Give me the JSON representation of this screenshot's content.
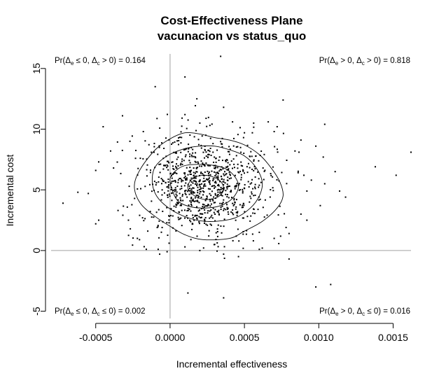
{
  "chart_data": {
    "type": "scatter",
    "title": "Cost-Effectiveness Plane",
    "subtitle": "vacunacion vs status_quo",
    "xlabel": "Incremental effectiveness",
    "ylabel": "Incremental cost",
    "xlim": [
      -0.0008,
      0.00162
    ],
    "ylim": [
      -5.6,
      16.2
    ],
    "x_ticks": [
      -0.0005,
      0.0,
      0.0005,
      0.001,
      0.0015
    ],
    "x_tick_labels": [
      "-0.0005",
      "0.0000",
      "0.0005",
      "0.0010",
      "0.0015"
    ],
    "y_ticks": [
      -5,
      0,
      5,
      10,
      15
    ],
    "y_tick_labels": [
      "-5",
      "0",
      "5",
      "10",
      "15"
    ],
    "reference_lines": {
      "x": 0,
      "y": 0,
      "color": "#a0a0a0"
    },
    "point_color": "#000000",
    "grid": false,
    "quadrant_probabilities": [
      {
        "position": "top-left",
        "prefix": "Pr(",
        "e_cond": " ≤ 0, ",
        "c_cond": " > 0) = ",
        "value": "0.164"
      },
      {
        "position": "top-right",
        "prefix": "Pr(",
        "e_cond": " > 0, ",
        "c_cond": " > 0) = ",
        "value": "0.818"
      },
      {
        "position": "bottom-left",
        "prefix": "Pr(",
        "e_cond": " ≤ 0, ",
        "c_cond": " ≤ 0) = ",
        "value": "0.002"
      },
      {
        "position": "bottom-right",
        "prefix": "Pr(",
        "e_cond": " > 0, ",
        "c_cond": " ≤ 0) = ",
        "value": "0.016"
      }
    ],
    "delta_symbol": "Δ",
    "sub_e": "e",
    "sub_c": "c",
    "contours": [
      {
        "level": "outer",
        "points": [
          [
            -0.00024,
            5.3
          ],
          [
            -0.0002,
            6.7
          ],
          [
            -0.0001,
            8.3
          ],
          [
            0.0,
            9.2
          ],
          [
            0.0001,
            9.7
          ],
          [
            0.0002,
            9.6
          ],
          [
            0.0003,
            9.3
          ],
          [
            0.0004,
            9.1
          ],
          [
            0.0005,
            8.7
          ],
          [
            0.0006,
            7.9
          ],
          [
            0.00068,
            6.8
          ],
          [
            0.00074,
            5.6
          ],
          [
            0.00076,
            4.5
          ],
          [
            0.00072,
            3.5
          ],
          [
            0.00062,
            2.4
          ],
          [
            0.0005,
            1.6
          ],
          [
            0.0004,
            1.0
          ],
          [
            0.00022,
            0.9
          ],
          [
            0.0001,
            1.3
          ],
          [
            0.0,
            2.0
          ],
          [
            -0.0001,
            2.8
          ],
          [
            -0.0002,
            3.9
          ],
          [
            -0.00024,
            5.3
          ]
        ]
      },
      {
        "level": "mid",
        "points": [
          [
            -0.00012,
            5.8
          ],
          [
            -0.0001,
            6.9
          ],
          [
            -2e-05,
            7.8
          ],
          [
            0.0001,
            8.4
          ],
          [
            0.0002,
            8.6
          ],
          [
            0.0003,
            8.6
          ],
          [
            0.0004,
            8.3
          ],
          [
            0.0005,
            7.8
          ],
          [
            0.00058,
            6.8
          ],
          [
            0.00062,
            5.6
          ],
          [
            0.0006,
            4.5
          ],
          [
            0.00054,
            3.5
          ],
          [
            0.00044,
            2.7
          ],
          [
            0.0003,
            2.4
          ],
          [
            0.00018,
            2.5
          ],
          [
            6e-05,
            3.0
          ],
          [
            -4e-05,
            3.8
          ],
          [
            -0.0001,
            4.7
          ],
          [
            -0.00012,
            5.8
          ]
        ]
      },
      {
        "level": "inner",
        "points": [
          [
            0.0,
            5.9
          ],
          [
            4e-05,
            6.6
          ],
          [
            0.0001,
            7.0
          ],
          [
            0.0002,
            7.1
          ],
          [
            0.0003,
            7.0
          ],
          [
            0.00038,
            6.7
          ],
          [
            0.00044,
            6.0
          ],
          [
            0.00046,
            5.2
          ],
          [
            0.00042,
            4.3
          ],
          [
            0.00034,
            3.7
          ],
          [
            0.00024,
            3.5
          ],
          [
            0.00014,
            3.6
          ],
          [
            6e-05,
            4.0
          ],
          [
            2e-05,
            4.8
          ],
          [
            0.0,
            5.9
          ]
        ]
      },
      {
        "level": "core",
        "points": [
          [
            0.00012,
            5.4
          ],
          [
            0.00016,
            6.0
          ],
          [
            0.00022,
            6.2
          ],
          [
            0.00028,
            6.1
          ],
          [
            0.00034,
            5.7
          ],
          [
            0.00036,
            5.0
          ],
          [
            0.00032,
            4.4
          ],
          [
            0.00025,
            4.2
          ],
          [
            0.00018,
            4.4
          ],
          [
            0.00013,
            4.9
          ],
          [
            0.00012,
            5.4
          ]
        ]
      }
    ],
    "points": [
      [
        0.00034,
        16.0
      ],
      [
        0.0001,
        14.3
      ],
      [
        -0.0001,
        13.5
      ],
      [
        0.00018,
        12.5
      ],
      [
        0.00036,
        11.8
      ],
      [
        0.00076,
        12.4
      ],
      [
        0.00066,
        10.6
      ],
      [
        -0.00045,
        10.2
      ],
      [
        -0.00032,
        11.1
      ],
      [
        0.0001,
        11.2
      ],
      [
        0.00042,
        10.6
      ],
      [
        0.0002,
        10.5
      ],
      [
        -0.00018,
        9.8
      ],
      [
        0.00072,
        10.2
      ],
      [
        0.00104,
        10.4
      ],
      [
        -0.00048,
        7.3
      ],
      [
        -0.0005,
        6.6
      ],
      [
        -0.00072,
        3.9
      ],
      [
        -0.00062,
        4.8
      ],
      [
        -0.00055,
        4.7
      ],
      [
        -0.00048,
        2.5
      ],
      [
        -0.0005,
        2.2
      ],
      [
        0.00138,
        6.9
      ],
      [
        0.00152,
        6.2
      ],
      [
        0.00162,
        8.1
      ],
      [
        0.00111,
        6.5
      ],
      [
        0.00118,
        4.4
      ],
      [
        0.00101,
        3.7
      ],
      [
        0.00092,
        2.5
      ],
      [
        0.0006,
        0.1
      ],
      [
        0.0008,
        -0.7
      ],
      [
        0.00098,
        -3.0
      ],
      [
        0.00108,
        -2.8
      ],
      [
        0.00012,
        -3.5
      ],
      [
        0.00036,
        -3.9
      ],
      [
        0.0001,
        0.3
      ],
      [
        -2e-05,
        -0.1
      ],
      [
        -8e-05,
        0.1
      ],
      [
        0.00036,
        -0.3
      ],
      [
        0.00062,
        0.2
      ],
      [
        -0.00016,
        0.1
      ],
      [
        0.0007,
        9.8
      ],
      [
        0.00088,
        9.1
      ],
      [
        -0.00027,
        9.0
      ],
      [
        0.0005,
        9.7
      ],
      [
        0.00084,
        8.2
      ],
      [
        0.00095,
        5.8
      ],
      [
        0.00103,
        7.7
      ],
      [
        -0.00038,
        6.8
      ],
      [
        -0.00035,
        3.3
      ],
      [
        -0.00028,
        2.5
      ],
      [
        -0.00015,
        1.6
      ],
      [
        0.0007,
        1.0
      ],
      [
        0.00078,
        1.9
      ],
      [
        0.00088,
        3.0
      ],
      [
        0.0008,
        1.4
      ],
      [
        0.00092,
        4.9
      ],
      [
        0.0003,
        0.5
      ],
      [
        0.0002,
        0.0
      ],
      [
        0.0009,
        6.2
      ],
      [
        -0.0002,
        7.6
      ],
      [
        0.00056,
        0.8
      ],
      [
        0.00014,
        0.9
      ],
      [
        -0.0004,
        8.2
      ],
      [
        0.00046,
        -0.5
      ],
      [
        -7e-05,
        -0.3
      ],
      [
        0.00114,
        4.9
      ],
      [
        0.00098,
        8.6
      ],
      [
        0.00104,
        5.5
      ],
      [
        -0.00022,
        1.0
      ],
      [
        0.00026,
        1.2
      ],
      [
        0.0006,
        1.5
      ]
    ]
  }
}
